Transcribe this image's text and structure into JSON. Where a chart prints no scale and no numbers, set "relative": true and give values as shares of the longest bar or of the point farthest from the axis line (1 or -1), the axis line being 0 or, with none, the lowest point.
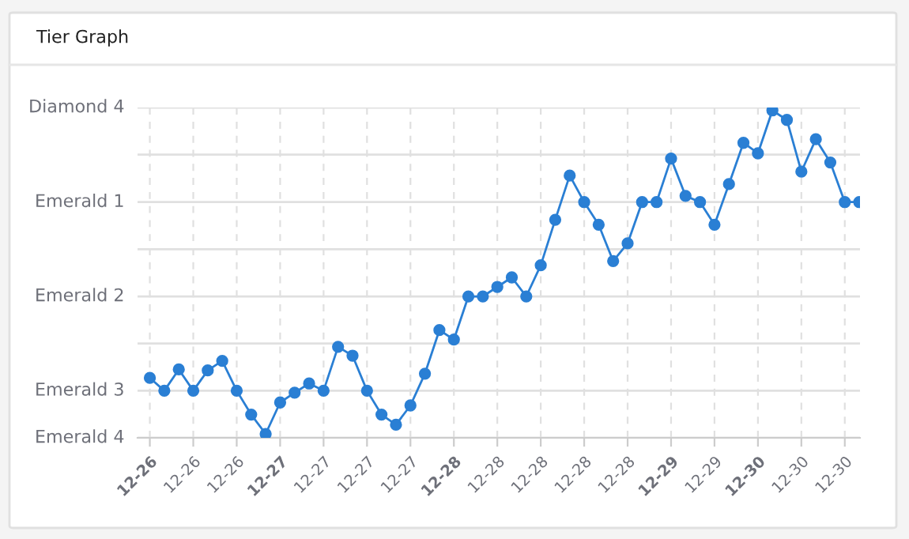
{
  "chart_data": {
    "type": "line",
    "title": "Tier Graph",
    "relative": true,
    "categories": [
      "12-26",
      null,
      null,
      "12-26",
      null,
      null,
      "12-26",
      null,
      null,
      "12-27",
      null,
      null,
      "12-27",
      null,
      null,
      "12-27",
      null,
      null,
      "12-27",
      null,
      null,
      "12-28",
      null,
      null,
      "12-28",
      null,
      null,
      "12-28",
      null,
      null,
      "12-28",
      null,
      null,
      "12-28",
      null,
      null,
      "12-29",
      null,
      null,
      "12-29",
      null,
      null,
      "12-30",
      null,
      null,
      "12-30",
      null,
      null,
      "12-30",
      null
    ],
    "series": [
      {
        "color": "#2a7fd4",
        "values": [
          0.183,
          0.144,
          0.209,
          0.144,
          0.206,
          0.235,
          0.144,
          0.071,
          0.012,
          0.108,
          0.138,
          0.166,
          0.144,
          0.278,
          0.251,
          0.144,
          0.071,
          0.04,
          0.099,
          0.196,
          0.329,
          0.3,
          0.432,
          0.432,
          0.461,
          0.49,
          0.432,
          0.527,
          0.666,
          0.801,
          0.72,
          0.651,
          0.54,
          0.594,
          0.72,
          0.72,
          0.853,
          0.739,
          0.72,
          0.651,
          0.775,
          0.901,
          0.869,
          1,
          0.971,
          0.813,
          0.912,
          0.841,
          0.72,
          0.72
        ]
      }
    ],
    "ref_lines": [
      {
        "axis": "y",
        "value": 0,
        "label": "Emerald 4",
        "color": "#e0e0e0"
      },
      {
        "axis": "y",
        "value": 0.144,
        "label": "Emerald 3",
        "color": "#e0e0e0"
      },
      {
        "axis": "y",
        "value": 0.288,
        "label": null,
        "color": "#e0e0e0"
      },
      {
        "axis": "y",
        "value": 0.432,
        "label": "Emerald 2",
        "color": "#e0e0e0"
      },
      {
        "axis": "y",
        "value": 0.576,
        "label": null,
        "color": "#e0e0e0"
      },
      {
        "axis": "y",
        "value": 0.72,
        "label": "Emerald 1",
        "color": "#e0e0e0"
      },
      {
        "axis": "y",
        "value": 0.865,
        "label": null,
        "color": "#e0e0e0"
      },
      {
        "axis": "y",
        "value": 1.009,
        "label": "Diamond 4",
        "color": "#e0e0e0"
      }
    ],
    "grid": "x",
    "marker": "circle",
    "line_style": "solid"
  }
}
